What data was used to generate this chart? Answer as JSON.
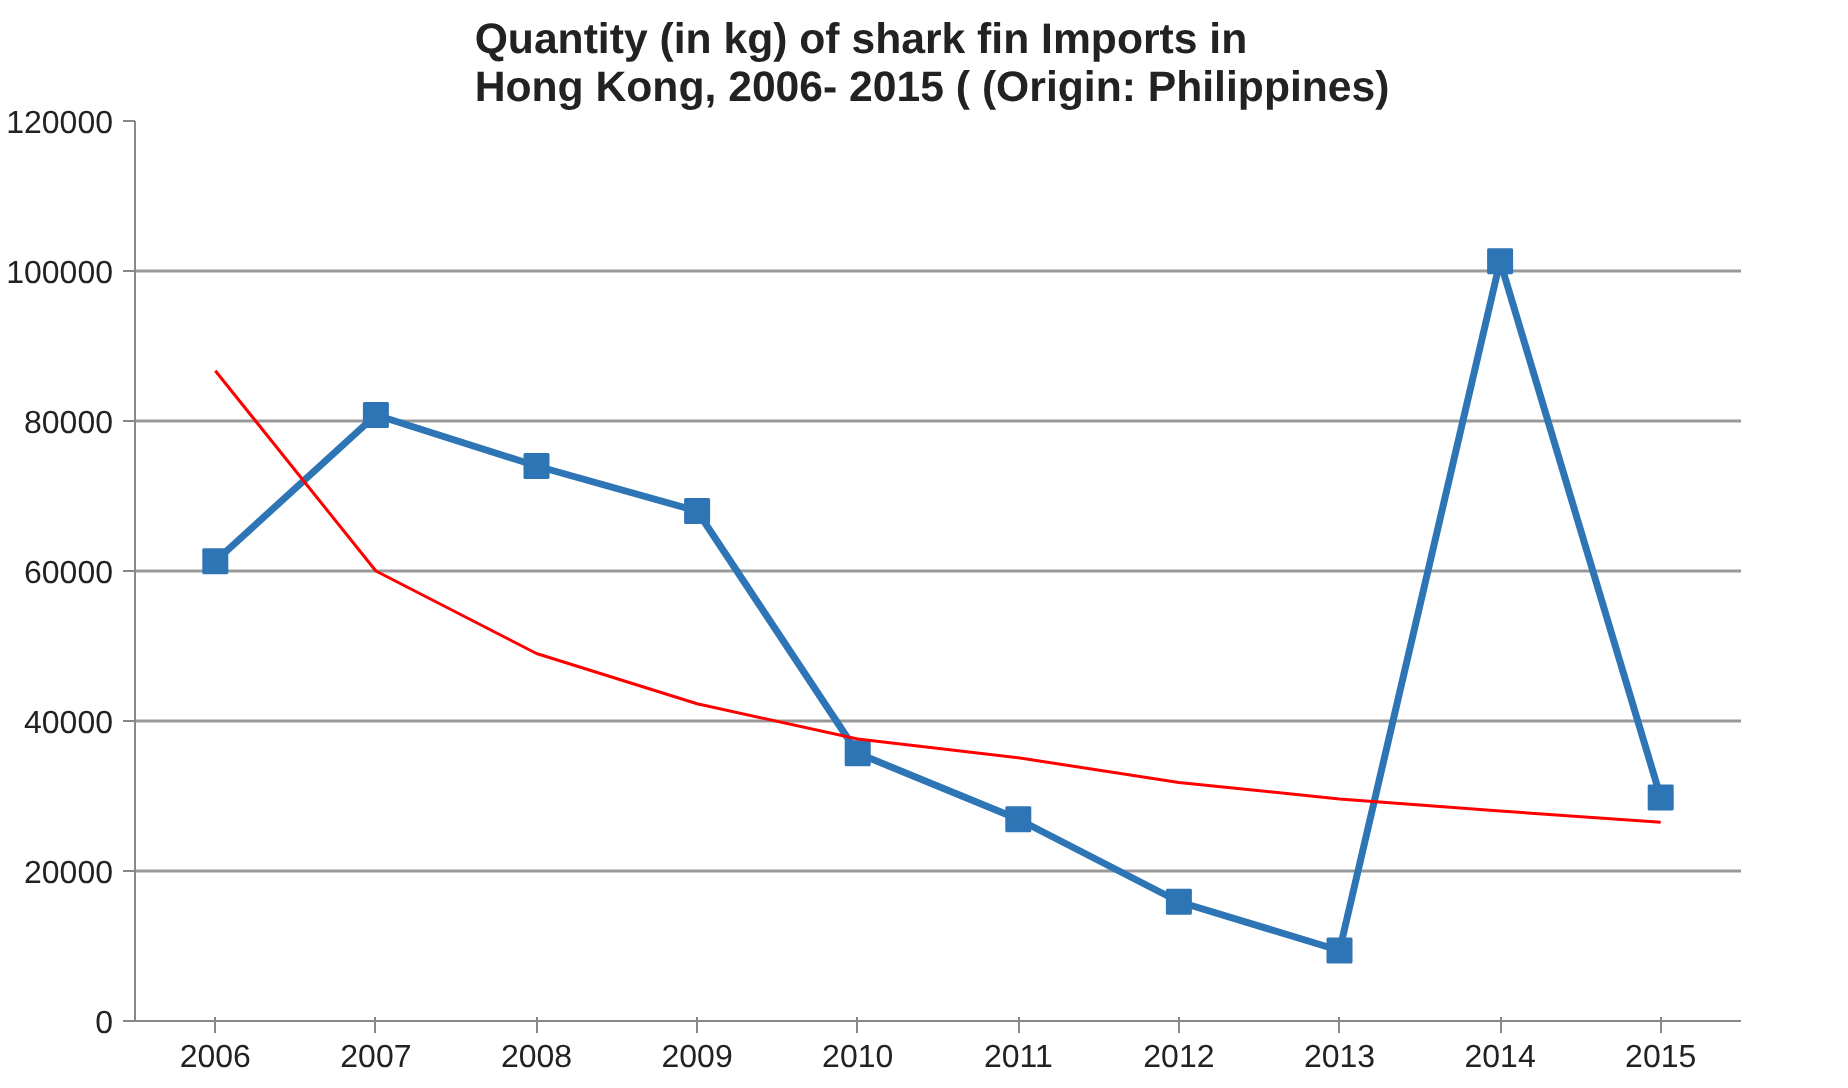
{
  "chart_data": {
    "type": "line",
    "title": "Quantity (in kg) of  shark fin Imports in\nHong Kong,  2006- 2015 ( (Origin: Philippines)",
    "categories": [
      "2006",
      "2007",
      "2008",
      "2009",
      "2010",
      "2011",
      "2012",
      "2013",
      "2014",
      "2015"
    ],
    "series": [
      {
        "color": "#2e75b6",
        "marker": "square",
        "values": [
          61300,
          80800,
          74000,
          68000,
          35700,
          26900,
          15900,
          9400,
          101300,
          29800
        ]
      },
      {
        "color": "#ff0000",
        "marker": "none",
        "values": [
          86700,
          60000,
          49000,
          42300,
          37600,
          35100,
          31800,
          29600,
          28000,
          26500
        ]
      }
    ],
    "ylim": [
      0,
      120000
    ],
    "yticks": [
      0,
      20000,
      40000,
      60000,
      80000,
      100000,
      120000
    ],
    "grid": "y"
  }
}
